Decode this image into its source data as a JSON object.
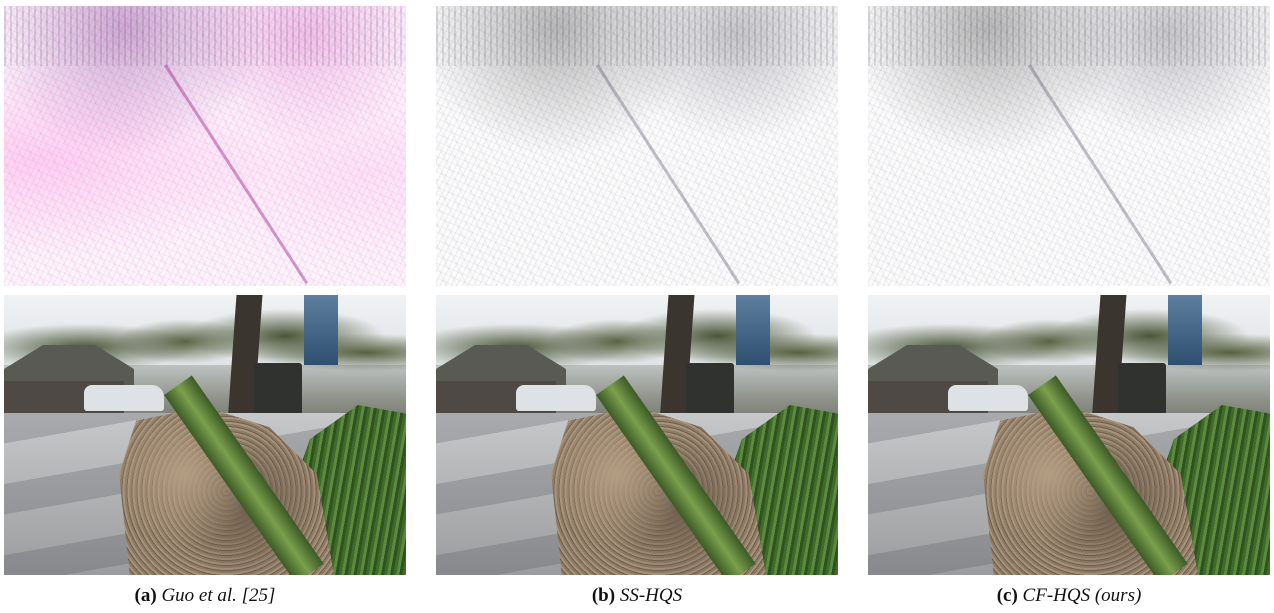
{
  "figure": {
    "panels": [
      {
        "label": "(a)",
        "caption": "Guo et al.  [25]"
      },
      {
        "label": "(b)",
        "caption": "SS-HQS"
      },
      {
        "label": "(c)",
        "caption": "CF-HQS (ours)"
      }
    ]
  }
}
